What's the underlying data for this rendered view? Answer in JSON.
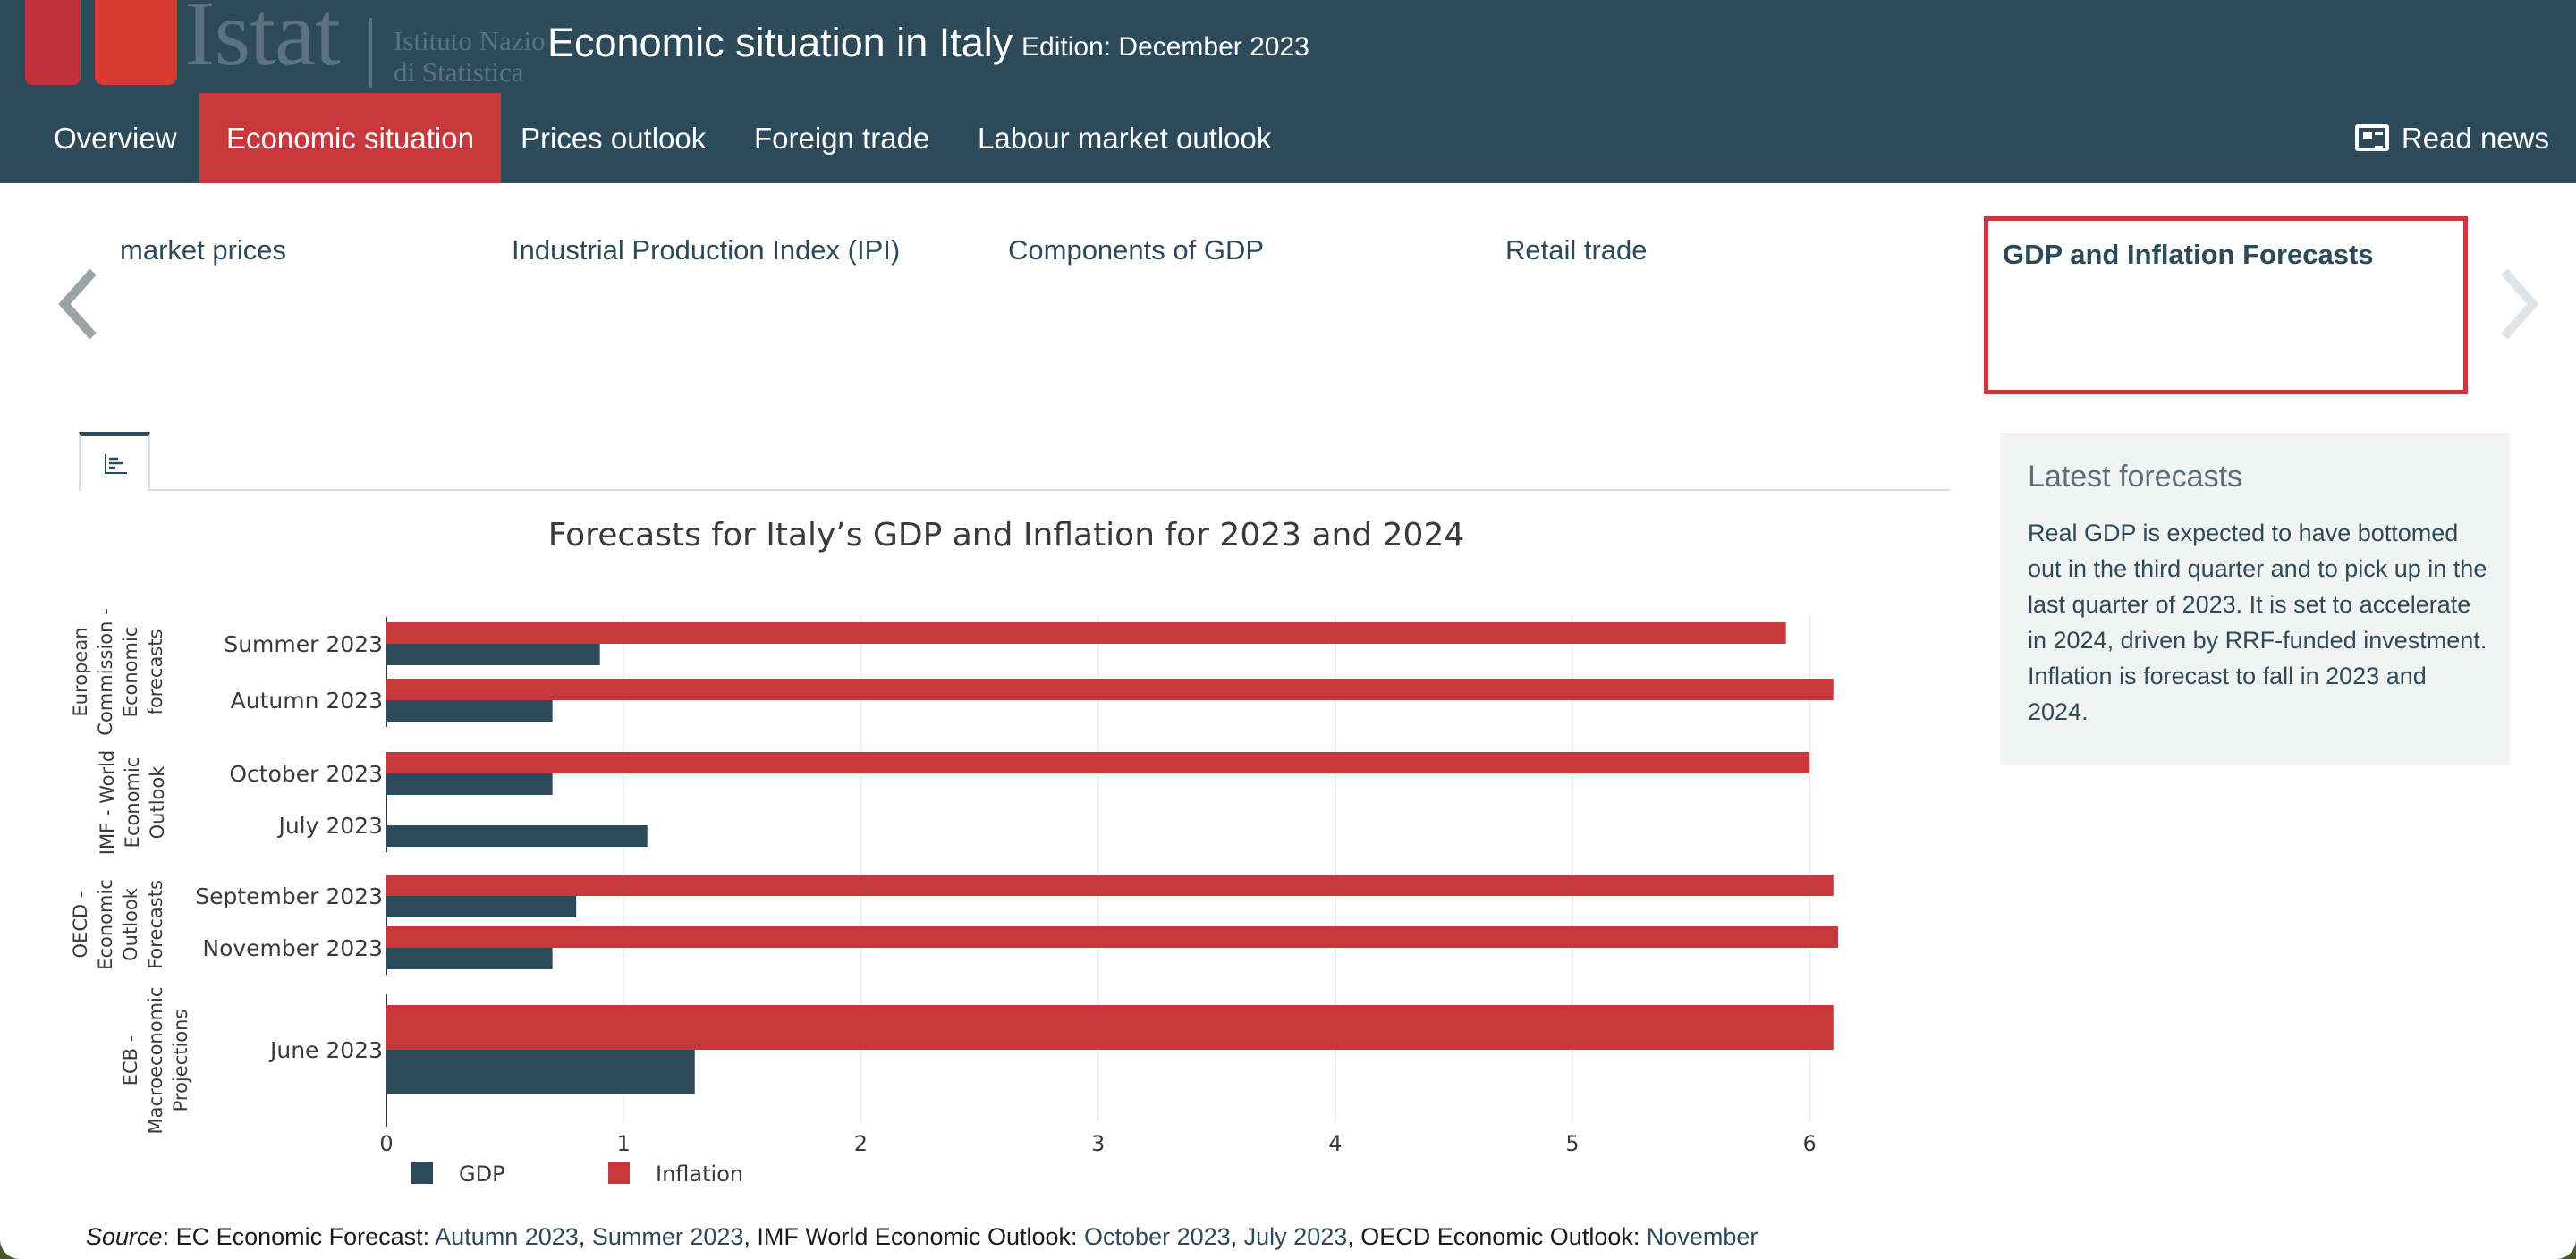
{
  "header": {
    "logo_word": "Istat",
    "logo_sub_line1": "Istituto Nazionale",
    "logo_sub_line2": "di Statistica",
    "title": "Economic situation in Italy",
    "edition": "Edition: December 2023"
  },
  "nav": {
    "items": [
      {
        "label": "Overview",
        "active": false
      },
      {
        "label": "Economic situation",
        "active": true
      },
      {
        "label": "Prices outlook",
        "active": false
      },
      {
        "label": "Foreign trade",
        "active": false
      },
      {
        "label": "Labour market outlook",
        "active": false
      }
    ],
    "read_news": "Read news"
  },
  "carousel": {
    "items": [
      "market prices",
      "Industrial Production Index (IPI)",
      "Components of GDP",
      "Retail trade"
    ],
    "active": "GDP and Inflation Forecasts"
  },
  "side_panel": {
    "title": "Latest forecasts",
    "text": "Real GDP is expected to have bottomed out in the third quarter and to pick up in the last quarter of 2023. It is set to accelerate in 2024, driven by RRF-funded investment. Inflation is forecast to fall in 2023 and 2024."
  },
  "chart_data": {
    "type": "bar",
    "orientation": "horizontal",
    "title": "Forecasts for Italy’s GDP and Inflation for 2023 and 2024",
    "xlim": [
      0,
      6.2
    ],
    "x_ticks": [
      0,
      1,
      2,
      3,
      4,
      5,
      6
    ],
    "grid": true,
    "legend_position": "bottom-left",
    "colors": {
      "GDP": "#2d4a5a",
      "Inflation": "#c8373c"
    },
    "groups": [
      {
        "name": "European Commission - Economic forecasts",
        "name_lines": [
          "European",
          "Commission -",
          "Economic",
          "forecasts"
        ],
        "categories": [
          "Summer 2023",
          "Autumn 2023"
        ]
      },
      {
        "name": "IMF - World Economic Outlook",
        "name_lines": [
          "IMF - World",
          "Economic",
          "Outlook"
        ],
        "categories": [
          "October 2023",
          "July 2023"
        ]
      },
      {
        "name": "OECD - Economic Outlook Forecasts",
        "name_lines": [
          "OECD -",
          "Economic",
          "Outlook",
          "Forecasts"
        ],
        "categories": [
          "September 2023",
          "November 2023"
        ]
      },
      {
        "name": "ECB - Macroeconomic Projections",
        "name_lines": [
          "ECB -",
          "Macroeconomic",
          "Projections"
        ],
        "categories": [
          "June 2023"
        ]
      }
    ],
    "series": [
      {
        "name": "GDP",
        "values": [
          0.9,
          0.7,
          0.7,
          1.1,
          0.8,
          0.7,
          1.3
        ]
      },
      {
        "name": "Inflation",
        "values": [
          5.9,
          6.1,
          6.0,
          null,
          6.1,
          6.12,
          6.1
        ]
      }
    ]
  },
  "source": {
    "label": "Source",
    "prefix": ": EC Economic Forecast: ",
    "link1": "Autumn 2023",
    "sep1": ", ",
    "link2": "Summer 2023",
    "mid": ", IMF World Economic Outlook: ",
    "link3": "October 2023",
    "sep2": ", ",
    "link4": "July 2023",
    "mid2": ", OECD Economic Outlook: ",
    "link5": "November"
  }
}
